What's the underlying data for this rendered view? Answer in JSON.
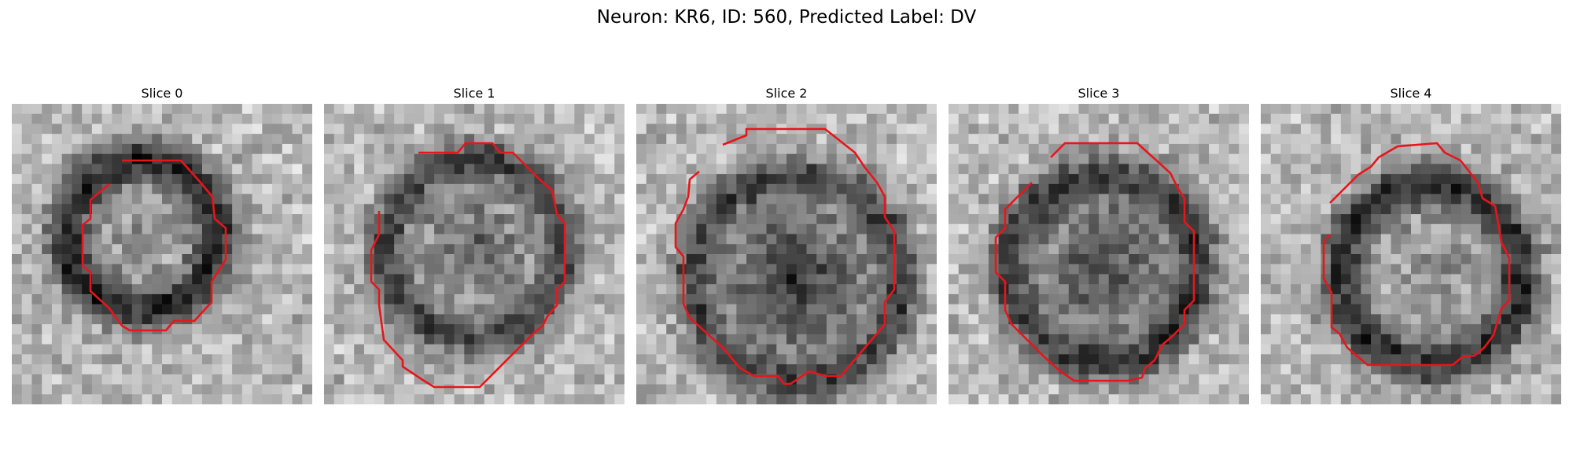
{
  "figure": {
    "title": "Neuron: KR6, ID: 560, Predicted Label: DV"
  },
  "panels": [
    {
      "title": "Slice 0"
    },
    {
      "title": "Slice 1"
    },
    {
      "title": "Slice 2"
    },
    {
      "title": "Slice 3"
    },
    {
      "title": "Slice 4"
    }
  ],
  "colors": {
    "contour": "#e8151b",
    "background": "#ffffff"
  }
}
